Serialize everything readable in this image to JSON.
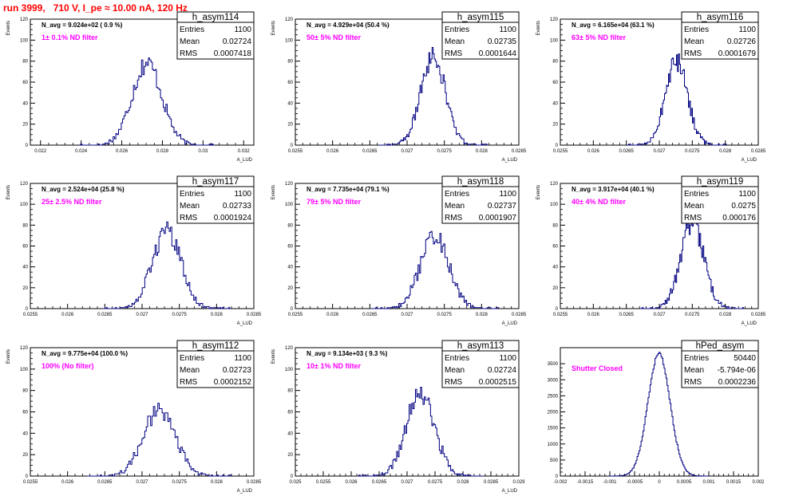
{
  "header": {
    "run_title": "run 3999,   710 V, I_pe ≈ 10.00 nA, 120 Hz"
  },
  "colors": {
    "histogram_line": "#000080",
    "filter_text": "#ff00ff",
    "run_title": "#ff0000"
  },
  "stat_labels": {
    "entries": "Entries",
    "mean": "Mean",
    "rms": "RMS"
  },
  "chart_data": [
    {
      "type": "histogram",
      "title": "h_asym114",
      "navg": "N_avg = 9.024e+02 ( 0.9 %)",
      "filter": "1± 0.1% ND filter",
      "entries": "1100",
      "mean": "0.02724",
      "rms": "0.0007418",
      "ylabel": "Events",
      "xlabel": "A_LUD",
      "xlim": [
        0.0215,
        0.0325
      ],
      "ylim": [
        0,
        120
      ],
      "xticks": [
        0.022,
        0.024,
        0.026,
        0.028,
        0.03,
        0.032
      ],
      "xtick_labels": [
        "0.022",
        "0.024",
        "0.026",
        "0.028",
        "0.03",
        "0.032"
      ],
      "yticks": [
        0,
        20,
        40,
        60,
        80,
        100,
        120
      ],
      "mu": 0.02724,
      "sigma": 0.00074,
      "peak": 78
    },
    {
      "type": "histogram",
      "title": "h_asym115",
      "navg": "N_avg = 4.929e+04 (50.4 %)",
      "filter": "50± 5% ND filter",
      "entries": "1100",
      "mean": "0.02735",
      "rms": "0.0001644",
      "ylabel": "Events",
      "xlabel": "A_LUD",
      "xlim": [
        0.0255,
        0.0285
      ],
      "ylim": [
        0,
        120
      ],
      "xticks": [
        0.0255,
        0.026,
        0.0265,
        0.027,
        0.0275,
        0.028,
        0.0285
      ],
      "xtick_labels": [
        "0.0255",
        "0.026",
        "0.0265",
        "0.027",
        "0.0275",
        "0.028",
        "0.0285"
      ],
      "yticks": [
        0,
        20,
        40,
        60,
        80,
        100,
        120
      ],
      "mu": 0.02735,
      "sigma": 0.000164,
      "peak": 85
    },
    {
      "type": "histogram",
      "title": "h_asym116",
      "navg": "N_avg = 6.165e+04 (63.1 %)",
      "filter": "63± 5% ND filter",
      "entries": "1100",
      "mean": "0.02726",
      "rms": "0.0001679",
      "ylabel": "Events",
      "xlabel": "A_LUD",
      "xlim": [
        0.0255,
        0.0285
      ],
      "ylim": [
        0,
        120
      ],
      "xticks": [
        0.0255,
        0.026,
        0.0265,
        0.027,
        0.0275,
        0.028,
        0.0285
      ],
      "xtick_labels": [
        "0.0255",
        "0.026",
        "0.0265",
        "0.027",
        "0.0275",
        "0.028",
        "0.0285"
      ],
      "yticks": [
        0,
        20,
        40,
        60,
        80,
        100,
        120
      ],
      "mu": 0.02726,
      "sigma": 0.000168,
      "peak": 80
    },
    {
      "type": "histogram",
      "title": "h_asym117",
      "navg": "N_avg = 2.524e+04 (25.8 %)",
      "filter": "25± 2.5% ND filter",
      "entries": "1100",
      "mean": "0.02733",
      "rms": "0.0001924",
      "ylabel": "Events",
      "xlabel": "A_LUD",
      "xlim": [
        0.0255,
        0.0285
      ],
      "ylim": [
        0,
        120
      ],
      "xticks": [
        0.0255,
        0.026,
        0.0265,
        0.027,
        0.0275,
        0.028,
        0.0285
      ],
      "xtick_labels": [
        "0.0255",
        "0.026",
        "0.0265",
        "0.027",
        "0.0275",
        "0.028",
        "0.0285"
      ],
      "yticks": [
        0,
        20,
        40,
        60,
        80,
        100,
        120
      ],
      "mu": 0.02733,
      "sigma": 0.000192,
      "peak": 74
    },
    {
      "type": "histogram",
      "title": "h_asym118",
      "navg": "N_avg = 7.735e+04 (79.1 %)",
      "filter": "79± 5% ND filter",
      "entries": "1100",
      "mean": "0.02737",
      "rms": "0.0001907",
      "ylabel": "Events",
      "xlabel": "A_LUD",
      "xlim": [
        0.0255,
        0.0285
      ],
      "ylim": [
        0,
        120
      ],
      "xticks": [
        0.0255,
        0.026,
        0.0265,
        0.027,
        0.0275,
        0.028,
        0.0285
      ],
      "xtick_labels": [
        "0.0255",
        "0.026",
        "0.0265",
        "0.027",
        "0.0275",
        "0.028",
        "0.0285"
      ],
      "yticks": [
        0,
        20,
        40,
        60,
        80,
        100,
        120
      ],
      "mu": 0.02737,
      "sigma": 0.000191,
      "peak": 70
    },
    {
      "type": "histogram",
      "title": "h_asym119",
      "navg": "N_avg = 3.917e+04 (40.1 %)",
      "filter": "40± 4% ND filter",
      "entries": "1100",
      "mean": "0.0275",
      "rms": "0.000176",
      "ylabel": "Events",
      "xlabel": "A_LUD",
      "xlim": [
        0.0255,
        0.0285
      ],
      "ylim": [
        0,
        120
      ],
      "xticks": [
        0.0255,
        0.026,
        0.0265,
        0.027,
        0.0275,
        0.028,
        0.0285
      ],
      "xtick_labels": [
        "0.0255",
        "0.026",
        "0.0265",
        "0.027",
        "0.0275",
        "0.028",
        "0.0285"
      ],
      "yticks": [
        0,
        20,
        40,
        60,
        80,
        100,
        120
      ],
      "mu": 0.0275,
      "sigma": 0.000176,
      "peak": 82
    },
    {
      "type": "histogram",
      "title": "h_asym112",
      "navg": "N_avg = 9.775e+04 (100.0 %)",
      "filter": "100% (No filter)",
      "entries": "1100",
      "mean": "0.02723",
      "rms": "0.0002152",
      "ylabel": "Events",
      "xlabel": "A_LUD",
      "xlim": [
        0.0255,
        0.0285
      ],
      "ylim": [
        0,
        120
      ],
      "xticks": [
        0.0255,
        0.026,
        0.0265,
        0.027,
        0.0275,
        0.028,
        0.0285
      ],
      "xtick_labels": [
        "0.0255",
        "0.026",
        "0.0265",
        "0.027",
        "0.0275",
        "0.028",
        "0.0285"
      ],
      "yticks": [
        0,
        20,
        40,
        60,
        80,
        100,
        120
      ],
      "mu": 0.02723,
      "sigma": 0.000215,
      "peak": 62
    },
    {
      "type": "histogram",
      "title": "h_asym113",
      "navg": "N_avg = 9.134e+03 ( 9.3 %)",
      "filter": "10± 1% ND filter",
      "entries": "1100",
      "mean": "0.02724",
      "rms": "0.0002515",
      "ylabel": "Events",
      "xlabel": "A_LUD",
      "xlim": [
        0.025,
        0.029
      ],
      "ylim": [
        0,
        120
      ],
      "xticks": [
        0.025,
        0.0255,
        0.026,
        0.0265,
        0.027,
        0.0275,
        0.028,
        0.0285,
        0.029
      ],
      "xtick_labels": [
        "0.025",
        "0.0255",
        "0.026",
        "0.0265",
        "0.027",
        "0.0275",
        "0.028",
        "0.0285",
        "0.029"
      ],
      "yticks": [
        0,
        20,
        40,
        60,
        80,
        100,
        120
      ],
      "mu": 0.02724,
      "sigma": 0.00025,
      "peak": 78
    },
    {
      "type": "histogram",
      "title": "hPed_asym",
      "navg": "",
      "filter": "Shutter Closed",
      "entries": "50440",
      "mean": "-5.794e-06",
      "rms": "0.0002236",
      "ylabel": "",
      "xlabel": "",
      "xlim": [
        -0.002,
        0.002
      ],
      "ylim": [
        0,
        4000
      ],
      "xticks": [
        -0.002,
        -0.0015,
        -0.001,
        -0.0005,
        0,
        0.0005,
        0.001,
        0.0015,
        0.002
      ],
      "xtick_labels": [
        "-0.002",
        "-0.0015",
        "-0.001",
        "-0.0005",
        "0",
        "0.0005",
        "0.001",
        "0.0015",
        "0.002"
      ],
      "yticks": [
        0,
        500,
        1000,
        1500,
        2000,
        2500,
        3000,
        3500
      ],
      "mu": -5.8e-06,
      "sigma": 0.000224,
      "peak": 3800
    }
  ]
}
